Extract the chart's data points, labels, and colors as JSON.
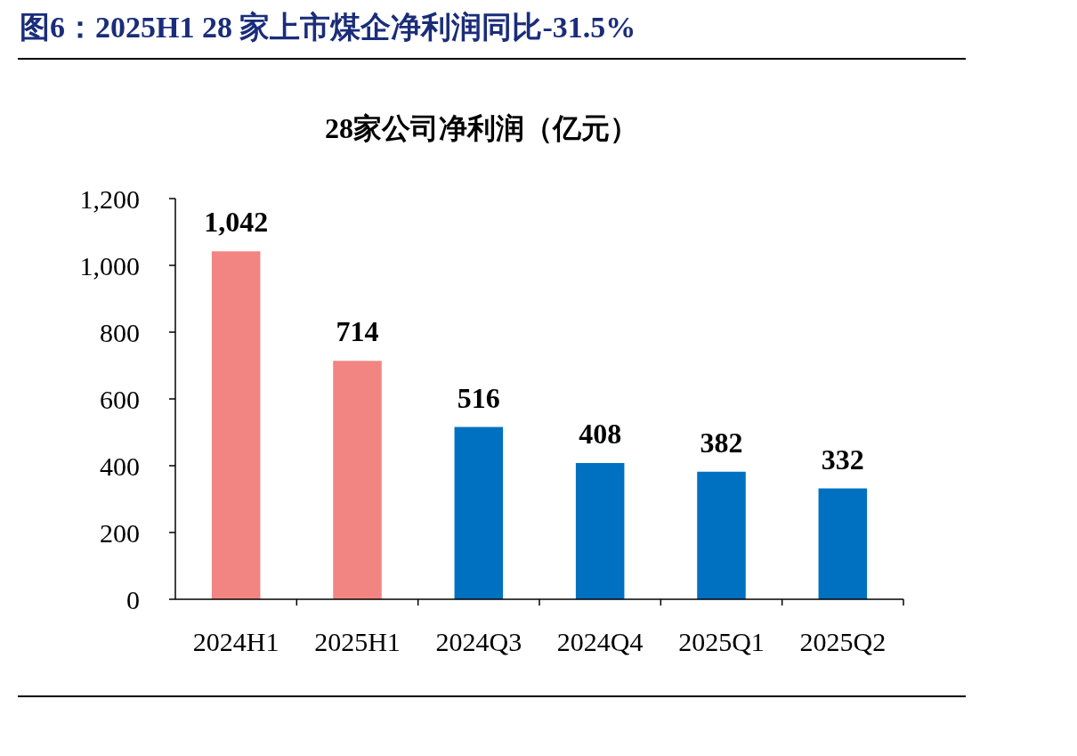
{
  "chart_data": {
    "type": "bar",
    "title": "图6：2025H1 28 家上市煤企净利润同比-31.5%",
    "subtitle": "28家公司净利润（亿元）",
    "categories": [
      "2024H1",
      "2025H1",
      "2024Q3",
      "2024Q4",
      "2025Q1",
      "2025Q2"
    ],
    "values": [
      1042,
      714,
      516,
      408,
      382,
      332
    ],
    "colors": [
      "#f28482",
      "#f28482",
      "#0070c0",
      "#0070c0",
      "#0070c0",
      "#0070c0"
    ],
    "ylim": [
      0,
      1200
    ],
    "yticks": [
      0,
      200,
      400,
      600,
      800,
      {
        "value": 1000,
        "label": "1,000"
      },
      {
        "value": 1200,
        "label": "1,200"
      }
    ],
    "value_labels": [
      "1,042",
      "714",
      "516",
      "408",
      "382",
      "332"
    ],
    "grid": false
  }
}
